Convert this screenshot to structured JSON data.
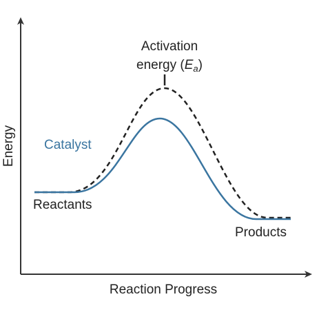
{
  "diagram": {
    "axes": {
      "y_label": "Energy",
      "x_label": "Reaction Progress"
    },
    "labels": {
      "activation_line1": "Activation",
      "activation_line2_prefix": "energy (",
      "activation_symbol": "E",
      "activation_subscript": "a",
      "activation_line2_suffix": ")",
      "catalyst": "Catalyst",
      "reactants": "Reactants",
      "products": "Products"
    },
    "curves": [
      {
        "name": "uncatalyzed",
        "style": "dashed",
        "color": "#222222"
      },
      {
        "name": "catalyzed",
        "style": "solid",
        "color": "#3a75a0"
      }
    ],
    "colors": {
      "axis": "#333333",
      "text": "#222222",
      "catalyst": "#3a75a0"
    }
  }
}
